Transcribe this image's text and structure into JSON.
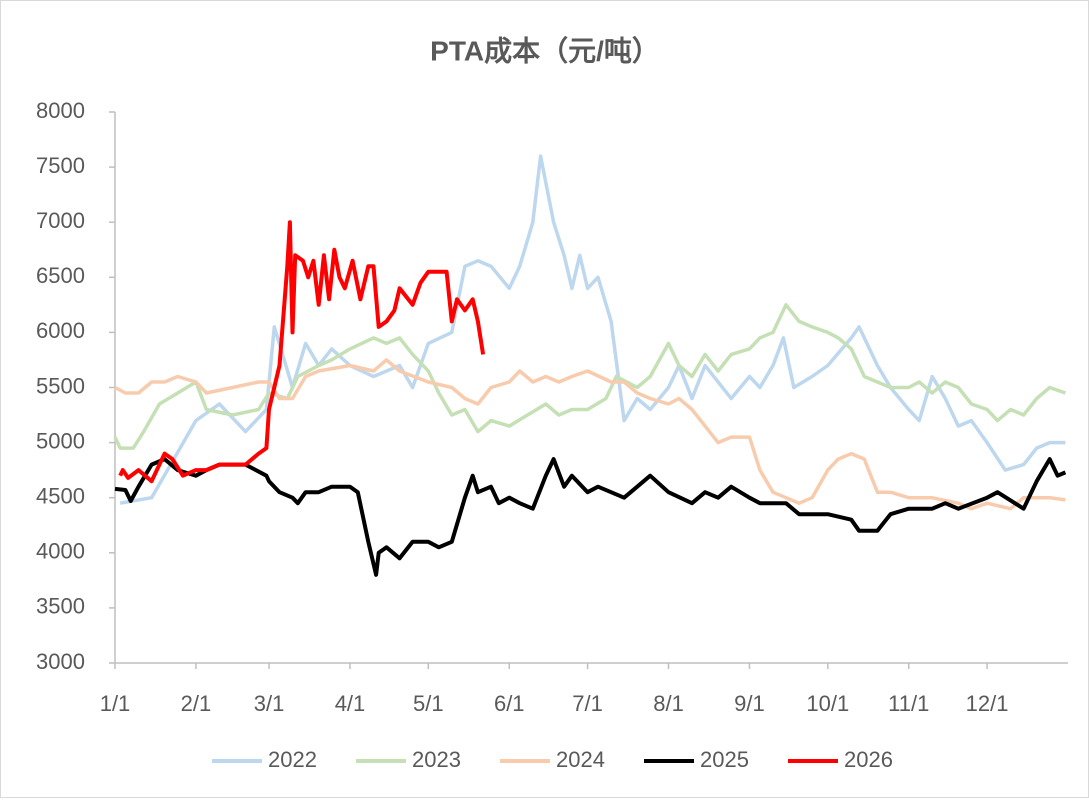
{
  "chart_data": {
    "type": "line",
    "title": "PTA成本（元/吨）",
    "xlim": [
      0,
      365
    ],
    "xticks": [
      {
        "value": 0,
        "label": "1/1"
      },
      {
        "value": 31,
        "label": "2/1"
      },
      {
        "value": 59,
        "label": "3/1"
      },
      {
        "value": 90,
        "label": "4/1"
      },
      {
        "value": 120,
        "label": "5/1"
      },
      {
        "value": 151,
        "label": "6/1"
      },
      {
        "value": 181,
        "label": "7/1"
      },
      {
        "value": 212,
        "label": "8/1"
      },
      {
        "value": 243,
        "label": "9/1"
      },
      {
        "value": 273,
        "label": "10/1"
      },
      {
        "value": 304,
        "label": "11/1"
      },
      {
        "value": 334,
        "label": "12/1"
      }
    ],
    "ylim": [
      3000,
      8000
    ],
    "yticks": [
      3000,
      3500,
      4000,
      4500,
      5000,
      5500,
      6000,
      6500,
      7000,
      7500,
      8000
    ],
    "grid": false,
    "legend": "bottom",
    "series": [
      {
        "name": "2022",
        "color": "#bdd7ee",
        "x": [
          2,
          14,
          31,
          40,
          50,
          58,
          61,
          68,
          73,
          78,
          83,
          90,
          99,
          109,
          114,
          120,
          129,
          134,
          139,
          144,
          151,
          155,
          160,
          163,
          168,
          172,
          175,
          178,
          181,
          185,
          190,
          195,
          200,
          205,
          212,
          216,
          221,
          226,
          231,
          236,
          243,
          247,
          252,
          256,
          260,
          267,
          273,
          282,
          285,
          292,
          297,
          304,
          308,
          313,
          318,
          323,
          328,
          334,
          341,
          348,
          353,
          358,
          364
        ],
        "values": [
          4450,
          4500,
          5200,
          5350,
          5100,
          5300,
          6050,
          5500,
          5900,
          5700,
          5850,
          5700,
          5600,
          5700,
          5500,
          5900,
          6000,
          6600,
          6650,
          6600,
          6400,
          6600,
          7000,
          7600,
          7000,
          6700,
          6400,
          6700,
          6400,
          6500,
          6100,
          5200,
          5400,
          5300,
          5500,
          5700,
          5400,
          5700,
          5550,
          5400,
          5600,
          5500,
          5700,
          5950,
          5500,
          5600,
          5700,
          5950,
          6050,
          5700,
          5500,
          5300,
          5200,
          5600,
          5400,
          5150,
          5200,
          5000,
          4750,
          4800,
          4950,
          5000,
          5000
        ]
      },
      {
        "name": "2023",
        "color": "#c5e0b4",
        "x": [
          0,
          2,
          7,
          11,
          17,
          24,
          31,
          35,
          45,
          55,
          59,
          66,
          70,
          78,
          83,
          90,
          99,
          104,
          109,
          114,
          120,
          124,
          129,
          134,
          139,
          144,
          151,
          158,
          165,
          170,
          175,
          181,
          188,
          192,
          200,
          205,
          212,
          216,
          221,
          226,
          231,
          236,
          243,
          247,
          252,
          257,
          262,
          267,
          273,
          277,
          282,
          287,
          292,
          297,
          304,
          308,
          313,
          318,
          323,
          328,
          334,
          338,
          343,
          348,
          353,
          358,
          364
        ],
        "values": [
          5050,
          4950,
          4950,
          5100,
          5350,
          5450,
          5550,
          5300,
          5250,
          5300,
          5450,
          5400,
          5600,
          5700,
          5750,
          5850,
          5950,
          5900,
          5950,
          5800,
          5650,
          5450,
          5250,
          5300,
          5100,
          5200,
          5150,
          5250,
          5350,
          5250,
          5300,
          5300,
          5400,
          5600,
          5500,
          5600,
          5900,
          5700,
          5600,
          5800,
          5650,
          5800,
          5850,
          5950,
          6000,
          6250,
          6100,
          6050,
          6000,
          5950,
          5850,
          5600,
          5550,
          5500,
          5500,
          5550,
          5450,
          5550,
          5500,
          5350,
          5300,
          5200,
          5300,
          5250,
          5400,
          5500,
          5450
        ]
      },
      {
        "name": "2024",
        "color": "#f8cbad",
        "x": [
          0,
          4,
          9,
          14,
          19,
          24,
          31,
          35,
          45,
          55,
          59,
          63,
          68,
          73,
          78,
          90,
          99,
          104,
          109,
          120,
          129,
          134,
          139,
          144,
          151,
          155,
          160,
          165,
          170,
          175,
          181,
          190,
          195,
          200,
          205,
          212,
          216,
          221,
          226,
          231,
          236,
          243,
          247,
          252,
          257,
          262,
          267,
          273,
          277,
          282,
          287,
          292,
          297,
          304,
          313,
          323,
          328,
          334,
          343,
          348,
          358,
          364
        ],
        "values": [
          5500,
          5450,
          5450,
          5550,
          5550,
          5600,
          5550,
          5450,
          5500,
          5550,
          5550,
          5400,
          5400,
          5600,
          5650,
          5700,
          5650,
          5750,
          5650,
          5550,
          5500,
          5400,
          5350,
          5500,
          5550,
          5650,
          5550,
          5600,
          5550,
          5600,
          5650,
          5550,
          5550,
          5450,
          5400,
          5350,
          5400,
          5300,
          5150,
          5000,
          5050,
          5050,
          4750,
          4550,
          4500,
          4450,
          4500,
          4750,
          4850,
          4900,
          4850,
          4550,
          4550,
          4500,
          4500,
          4450,
          4400,
          4450,
          4400,
          4500,
          4500,
          4480
        ]
      },
      {
        "name": "2025",
        "color": "#000000",
        "x": [
          0,
          4,
          6,
          9,
          14,
          19,
          24,
          31,
          35,
          40,
          50,
          58,
          59,
          63,
          68,
          70,
          73,
          78,
          83,
          90,
          93,
          97,
          99,
          100,
          101,
          104,
          109,
          114,
          120,
          124,
          129,
          134,
          137,
          139,
          144,
          147,
          151,
          155,
          160,
          165,
          168,
          172,
          175,
          181,
          185,
          190,
          195,
          200,
          205,
          212,
          221,
          226,
          231,
          236,
          243,
          247,
          252,
          257,
          262,
          273,
          282,
          285,
          292,
          297,
          304,
          313,
          318,
          323,
          334,
          338,
          348,
          353,
          358,
          361,
          364
        ],
        "values": [
          4580,
          4570,
          4470,
          4600,
          4800,
          4850,
          4750,
          4700,
          4750,
          4800,
          4800,
          4700,
          4650,
          4550,
          4500,
          4450,
          4550,
          4550,
          4600,
          4600,
          4550,
          4100,
          3900,
          3800,
          4000,
          4050,
          3950,
          4100,
          4100,
          4050,
          4100,
          4500,
          4700,
          4550,
          4600,
          4450,
          4500,
          4450,
          4400,
          4700,
          4850,
          4600,
          4700,
          4550,
          4600,
          4550,
          4500,
          4600,
          4700,
          4550,
          4450,
          4550,
          4500,
          4600,
          4500,
          4450,
          4450,
          4450,
          4350,
          4350,
          4300,
          4200,
          4200,
          4350,
          4400,
          4400,
          4450,
          4400,
          4500,
          4550,
          4400,
          4650,
          4850,
          4700,
          4730
        ]
      },
      {
        "name": "2026",
        "color": "#ff0000",
        "x": [
          2,
          3,
          5,
          9,
          14,
          19,
          22,
          26,
          31,
          35,
          40,
          50,
          55,
          58,
          59,
          63,
          66,
          67,
          68,
          69,
          72,
          74,
          76,
          78,
          80,
          82,
          84,
          86,
          88,
          91,
          94,
          97,
          99,
          101,
          104,
          107,
          109,
          114,
          117,
          120,
          124,
          127,
          129,
          131,
          134,
          137,
          139,
          141
        ],
        "values": [
          4700,
          4750,
          4680,
          4750,
          4650,
          4900,
          4850,
          4700,
          4750,
          4750,
          4800,
          4800,
          4900,
          4950,
          5300,
          5700,
          6600,
          7000,
          6000,
          6700,
          6650,
          6500,
          6650,
          6250,
          6700,
          6300,
          6750,
          6500,
          6400,
          6650,
          6300,
          6600,
          6600,
          6050,
          6100,
          6200,
          6400,
          6250,
          6450,
          6550,
          6550,
          6550,
          6100,
          6300,
          6200,
          6300,
          6100,
          5800
        ]
      }
    ]
  }
}
